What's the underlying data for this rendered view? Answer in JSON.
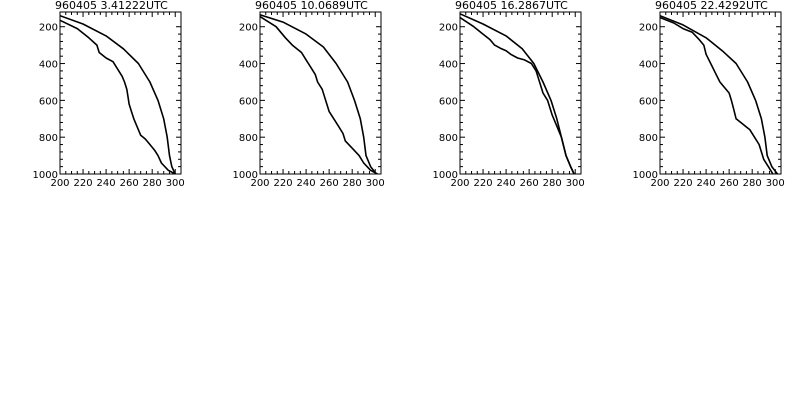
{
  "chart_data": [
    {
      "type": "line",
      "title": "960405   3.41222UTC",
      "xlim": [
        200,
        305
      ],
      "ylim": [
        1000,
        120
      ],
      "x_ticks": [
        "200",
        "220",
        "240",
        "260",
        "280",
        "300"
      ],
      "y_ticks": [
        "200",
        "400",
        "600",
        "800",
        "1000"
      ],
      "grid": false,
      "series": [
        {
          "points": [
            [
              200,
              140
            ],
            [
              220,
              185
            ],
            [
              240,
              250
            ],
            [
              255,
              320
            ],
            [
              268,
              400
            ],
            [
              278,
              500
            ],
            [
              285,
              600
            ],
            [
              290,
              700
            ],
            [
              293,
              800
            ],
            [
              295,
              900
            ],
            [
              297,
              960
            ],
            [
              300,
              1000
            ]
          ]
        },
        {
          "points": [
            [
              200,
              165
            ],
            [
              215,
              210
            ],
            [
              225,
              260
            ],
            [
              232,
              300
            ],
            [
              234,
              340
            ],
            [
              240,
              370
            ],
            [
              246,
              390
            ],
            [
              250,
              430
            ],
            [
              254,
              470
            ],
            [
              256,
              500
            ],
            [
              258,
              540
            ],
            [
              259,
              580
            ],
            [
              260,
              620
            ],
            [
              262,
              660
            ],
            [
              264,
              700
            ],
            [
              266,
              730
            ],
            [
              268,
              760
            ],
            [
              270,
              790
            ],
            [
              274,
              810
            ],
            [
              278,
              840
            ],
            [
              282,
              870
            ],
            [
              285,
              900
            ],
            [
              288,
              940
            ],
            [
              294,
              980
            ],
            [
              300,
              1000
            ]
          ]
        }
      ]
    },
    {
      "type": "line",
      "title": "960405   10.0689UTC",
      "xlim": [
        200,
        305
      ],
      "ylim": [
        1000,
        120
      ],
      "x_ticks": [
        "200",
        "220",
        "240",
        "260",
        "280",
        "300"
      ],
      "y_ticks": [
        "200",
        "400",
        "600",
        "800",
        "1000"
      ],
      "grid": false,
      "series": [
        {
          "points": [
            [
              200,
              135
            ],
            [
              220,
              175
            ],
            [
              240,
              240
            ],
            [
              255,
              310
            ],
            [
              266,
              400
            ],
            [
              276,
              500
            ],
            [
              282,
              600
            ],
            [
              287,
              700
            ],
            [
              290,
              800
            ],
            [
              292,
              900
            ],
            [
              296,
              960
            ],
            [
              301,
              1000
            ]
          ]
        },
        {
          "points": [
            [
              200,
              145
            ],
            [
              214,
              200
            ],
            [
              222,
              260
            ],
            [
              228,
              300
            ],
            [
              236,
              340
            ],
            [
              240,
              380
            ],
            [
              244,
              420
            ],
            [
              248,
              460
            ],
            [
              250,
              500
            ],
            [
              254,
              540
            ],
            [
              256,
              580
            ],
            [
              258,
              620
            ],
            [
              260,
              660
            ],
            [
              264,
              700
            ],
            [
              268,
              740
            ],
            [
              272,
              780
            ],
            [
              274,
              820
            ],
            [
              280,
              860
            ],
            [
              286,
              900
            ],
            [
              290,
              940
            ],
            [
              296,
              980
            ],
            [
              302,
              1000
            ]
          ]
        }
      ]
    },
    {
      "type": "line",
      "title": "960405   16.2867UTC",
      "xlim": [
        200,
        305
      ],
      "ylim": [
        1000,
        120
      ],
      "x_ticks": [
        "200",
        "220",
        "240",
        "260",
        "280",
        "300"
      ],
      "y_ticks": [
        "200",
        "400",
        "600",
        "800",
        "1000"
      ],
      "grid": false,
      "series": [
        {
          "points": [
            [
              200,
              130
            ],
            [
              220,
              185
            ],
            [
              240,
              250
            ],
            [
              254,
              320
            ],
            [
              264,
              400
            ],
            [
              272,
              500
            ],
            [
              279,
              600
            ],
            [
              284,
              700
            ],
            [
              288,
              800
            ],
            [
              292,
              900
            ],
            [
              296,
              960
            ],
            [
              299,
              1000
            ]
          ]
        },
        {
          "points": [
            [
              200,
              150
            ],
            [
              212,
              200
            ],
            [
              220,
              240
            ],
            [
              226,
              270
            ],
            [
              230,
              300
            ],
            [
              236,
              320
            ],
            [
              240,
              330
            ],
            [
              244,
              350
            ],
            [
              250,
              370
            ],
            [
              256,
              380
            ],
            [
              262,
              400
            ],
            [
              266,
              440
            ],
            [
              268,
              480
            ],
            [
              270,
              520
            ],
            [
              272,
              560
            ],
            [
              276,
              600
            ],
            [
              278,
              640
            ],
            [
              280,
              680
            ],
            [
              284,
              740
            ],
            [
              288,
              800
            ],
            [
              292,
              900
            ],
            [
              296,
              960
            ],
            [
              299,
              1000
            ]
          ]
        }
      ]
    },
    {
      "type": "line",
      "title": "960405   22.4292UTC",
      "xlim": [
        200,
        305
      ],
      "ylim": [
        1000,
        120
      ],
      "x_ticks": [
        "200",
        "220",
        "240",
        "260",
        "280",
        "300"
      ],
      "y_ticks": [
        "200",
        "400",
        "600",
        "800",
        "1000"
      ],
      "grid": false,
      "series": [
        {
          "points": [
            [
              200,
              140
            ],
            [
              220,
              190
            ],
            [
              240,
              260
            ],
            [
              254,
              330
            ],
            [
              266,
              400
            ],
            [
              276,
              500
            ],
            [
              283,
              600
            ],
            [
              288,
              700
            ],
            [
              291,
              800
            ],
            [
              293,
              900
            ],
            [
              297,
              960
            ],
            [
              302,
              1000
            ]
          ]
        },
        {
          "points": [
            [
              200,
              150
            ],
            [
              212,
              180
            ],
            [
              220,
              210
            ],
            [
              228,
              230
            ],
            [
              234,
              270
            ],
            [
              238,
              300
            ],
            [
              240,
              350
            ],
            [
              244,
              400
            ],
            [
              248,
              450
            ],
            [
              252,
              500
            ],
            [
              256,
              530
            ],
            [
              260,
              560
            ],
            [
              262,
              600
            ],
            [
              264,
              650
            ],
            [
              266,
              700
            ],
            [
              272,
              730
            ],
            [
              278,
              760
            ],
            [
              282,
              800
            ],
            [
              286,
              840
            ],
            [
              288,
              880
            ],
            [
              290,
              920
            ],
            [
              294,
              960
            ],
            [
              298,
              1000
            ]
          ]
        }
      ]
    }
  ]
}
